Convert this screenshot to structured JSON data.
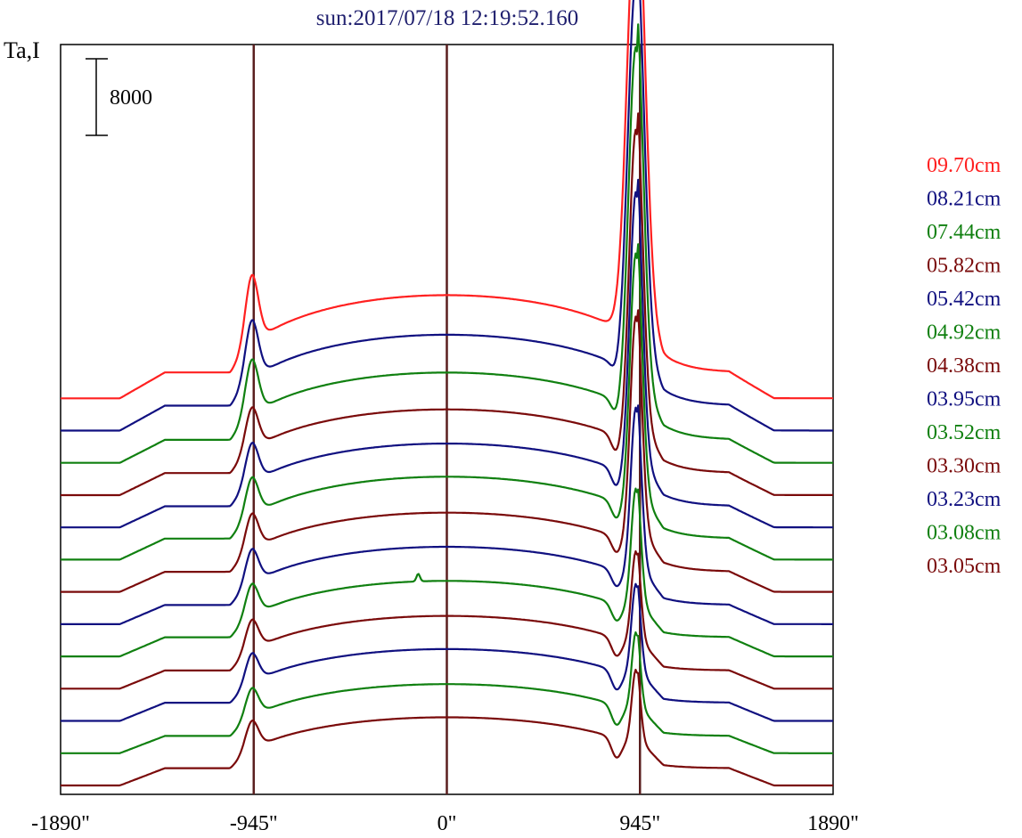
{
  "chart_data": {
    "type": "line",
    "title": "sun:2017/07/18 12:19:52.160",
    "ylabel": "Ta,I",
    "xlabel": "",
    "x_ticks": [
      "-1890\"",
      "-945\"",
      "0\"",
      "945\"",
      "1890\""
    ],
    "x_tick_values": [
      -1890,
      -945,
      0,
      945,
      1890
    ],
    "xlim": [
      -1890,
      1890
    ],
    "vertical_lines_at": [
      -945,
      0,
      945
    ],
    "scale_bar": {
      "label": "8000",
      "value": 8000
    },
    "y_offset_step": 3370,
    "colors": {
      "red": "#ff2020",
      "blue": "#101080",
      "green": "#108010",
      "darkred": "#7a0a0a",
      "axes": "#000000",
      "refline": "#5a1f1f"
    },
    "series": [
      {
        "name": "09.70cm",
        "color": "#ff2020",
        "limb": 2700,
        "flat": 8500,
        "peak_w": 7200,
        "peak_e": 46000,
        "width_e": 60,
        "dip": 0,
        "extra": 0
      },
      {
        "name": "08.21cm",
        "color": "#101080",
        "limb": 2600,
        "flat": 7800,
        "peak_w": 6200,
        "peak_e": 41000,
        "width_e": 55,
        "dip": 1200,
        "extra": 0
      },
      {
        "name": "07.44cm",
        "color": "#108010",
        "limb": 2400,
        "flat": 7400,
        "peak_w": 5800,
        "peak_e": 38000,
        "width_e": 50,
        "dip": 1600,
        "extra": 0
      },
      {
        "name": "05.82cm",
        "color": "#7a0a0a",
        "limb": 2300,
        "flat": 7000,
        "peak_w": 4400,
        "peak_e": 33000,
        "width_e": 45,
        "dip": 1800,
        "extra": 0
      },
      {
        "name": "05.42cm",
        "color": "#101080",
        "limb": 2200,
        "flat": 6900,
        "peak_w": 4200,
        "peak_e": 30000,
        "width_e": 42,
        "dip": 1800,
        "extra": 0
      },
      {
        "name": "04.92cm",
        "color": "#108010",
        "limb": 2200,
        "flat": 6800,
        "peak_w": 4000,
        "peak_e": 27000,
        "width_e": 40,
        "dip": 1700,
        "extra": 0
      },
      {
        "name": "04.38cm",
        "color": "#7a0a0a",
        "limb": 2100,
        "flat": 6500,
        "peak_w": 3800,
        "peak_e": 24000,
        "width_e": 38,
        "dip": 1600,
        "extra": 0
      },
      {
        "name": "03.95cm",
        "color": "#101080",
        "limb": 2000,
        "flat": 6400,
        "peak_w": 3600,
        "peak_e": 18000,
        "width_e": 35,
        "dip": 1600,
        "extra": 0
      },
      {
        "name": "03.52cm",
        "color": "#108010",
        "limb": 2000,
        "flat": 6200,
        "peak_w": 3400,
        "peak_e": 13000,
        "width_e": 32,
        "dip": 1700,
        "extra": 800
      },
      {
        "name": "03.30cm",
        "color": "#7a0a0a",
        "limb": 1900,
        "flat": 6000,
        "peak_w": 3200,
        "peak_e": 10000,
        "width_e": 30,
        "dip": 1800,
        "extra": 0
      },
      {
        "name": "03.23cm",
        "color": "#101080",
        "limb": 1900,
        "flat": 5900,
        "peak_w": 3100,
        "peak_e": 10000,
        "width_e": 30,
        "dip": 1900,
        "extra": 0
      },
      {
        "name": "03.08cm",
        "color": "#108010",
        "limb": 1800,
        "flat": 5700,
        "peak_w": 3000,
        "peak_e": 8500,
        "width_e": 28,
        "dip": 2000,
        "extra": 0
      },
      {
        "name": "03.05cm",
        "color": "#7a0a0a",
        "limb": 1800,
        "flat": 5600,
        "peak_w": 3000,
        "peak_e": 8000,
        "width_e": 28,
        "dip": 2000,
        "extra": 0
      }
    ]
  }
}
